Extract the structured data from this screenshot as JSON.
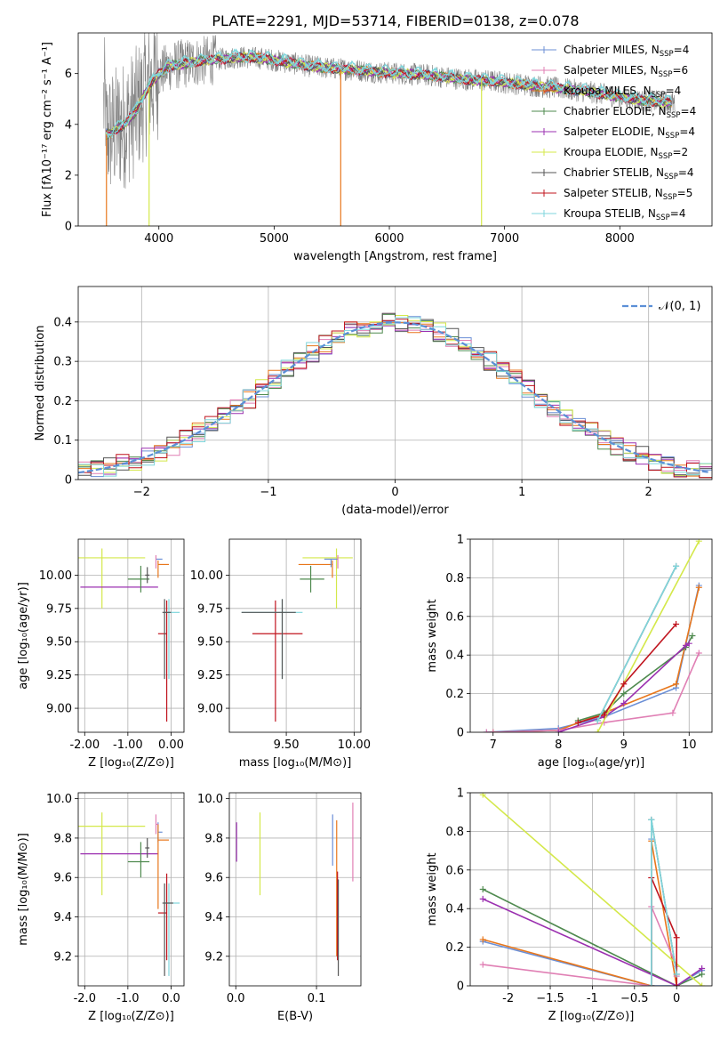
{
  "title": "PLATE=2291, MJD=53714, FIBERID=0138, z=0.078",
  "colors": {
    "chabrier_miles": "#6b8fd6",
    "salpeter_miles": "#e07fb4",
    "kroupa_miles": "#4a6fd0",
    "chabrier_elodie": "#4f8a4f",
    "salpeter_elodie": "#9b30b0",
    "kroupa_elodie": "#d4e84a",
    "chabrier_stelib": "#555555",
    "salpeter_stelib": "#c0141e",
    "kroupa_stelib": "#7fd6dc",
    "orange": "#e8771c",
    "data": "#808080",
    "normal": "#5b8fd6"
  },
  "legend": [
    {
      "text": "Chabrier MILES, N",
      "sub": "SSP",
      "suffix": "=4",
      "color": "#6b8fd6"
    },
    {
      "text": "Salpeter MILES, N",
      "sub": "SSP",
      "suffix": "=6",
      "color": "#e07fb4"
    },
    {
      "text": "Kroupa MILES, N",
      "sub": "SSP",
      "suffix": "=4",
      "color": "#e8771c"
    },
    {
      "text": "Chabrier ELODIE, N",
      "sub": "SSP",
      "suffix": "=4",
      "color": "#4f8a4f"
    },
    {
      "text": "Salpeter ELODIE, N",
      "sub": "SSP",
      "suffix": "=4",
      "color": "#9b30b0"
    },
    {
      "text": "Kroupa ELODIE, N",
      "sub": "SSP",
      "suffix": "=2",
      "color": "#d4e84a"
    },
    {
      "text": "Chabrier STELIB, N",
      "sub": "SSP",
      "suffix": "=4",
      "color": "#555555"
    },
    {
      "text": "Salpeter STELIB, N",
      "sub": "SSP",
      "suffix": "=5",
      "color": "#c0141e"
    },
    {
      "text": "Kroupa STELIB, N",
      "sub": "SSP",
      "suffix": "=4",
      "color": "#7fd6dc"
    }
  ],
  "chart_data": [
    {
      "type": "line",
      "id": "spectrum",
      "xlabel": "wavelength [Angstrom, rest frame]",
      "ylabel": "Flux [fλ10⁻¹⁷ erg cm⁻² s⁻¹ A⁻¹]",
      "xlim": [
        3300,
        8800
      ],
      "ylim": [
        0,
        7.6
      ],
      "xticks": [
        4000,
        5000,
        6000,
        7000,
        8000
      ],
      "yticks": [
        0,
        2,
        4,
        6
      ],
      "model_continuum": {
        "x": [
          3540,
          3600,
          3700,
          3800,
          3900,
          4000,
          4100,
          4300,
          4500,
          4700,
          4900,
          5100,
          5300,
          5500,
          5700,
          5900,
          6100,
          6300,
          6500,
          6700,
          6900,
          7100,
          7300,
          7500,
          7700,
          7900,
          8100,
          8300,
          8450
        ],
        "y": [
          3.6,
          3.7,
          4.0,
          4.5,
          5.4,
          6.0,
          6.3,
          6.45,
          6.55,
          6.65,
          6.6,
          6.45,
          6.3,
          6.2,
          6.15,
          6.05,
          6.0,
          5.95,
          5.85,
          5.75,
          5.7,
          5.6,
          5.5,
          5.4,
          5.3,
          5.15,
          5.0,
          4.9,
          4.85
        ]
      }
    },
    {
      "type": "line",
      "id": "residual-histogram",
      "xlabel": "(data-model)/error",
      "ylabel": "Normed distribution",
      "xlim": [
        -2.5,
        2.5
      ],
      "ylim": [
        0,
        0.49
      ],
      "xticks": [
        -2,
        -1,
        0,
        1,
        2
      ],
      "yticks": [
        0.0,
        0.1,
        0.2,
        0.3,
        0.4
      ],
      "series": [
        {
          "name": "𝒩(0, 1)",
          "type": "normal",
          "mean": 0,
          "sigma": 1
        }
      ]
    },
    {
      "type": "scatter",
      "id": "age-vs-z",
      "xlabel": "Z [log₁₀(Z/Z⊙)]",
      "ylabel": "age  [log₁₀(age/yr)]",
      "xlim": [
        -2.15,
        0.3
      ],
      "ylim": [
        8.82,
        10.27
      ],
      "xticks": [
        -2,
        -1,
        0
      ],
      "yticks": [
        9.0,
        9.25,
        9.5,
        9.75,
        10.0
      ],
      "points": [
        {
          "x": -1.6,
          "y": 10.13,
          "xerr": [
            0.55,
            1.0
          ],
          "yerr": [
            0.38,
            0.07
          ],
          "color": "#d4e84a"
        },
        {
          "x": -0.55,
          "y": 9.91,
          "xerr": [
            1.55,
            0.25
          ],
          "yerr": [
            0.0,
            0.0
          ],
          "color": "#9b30b0"
        },
        {
          "x": -0.7,
          "y": 9.97,
          "xerr": [
            0.3,
            0.2
          ],
          "yerr": [
            0.1,
            0.1
          ],
          "color": "#4f8a4f"
        },
        {
          "x": -0.55,
          "y": 10.0,
          "xerr": [
            0.05,
            0.05
          ],
          "yerr": [
            0.06,
            0.06
          ],
          "color": "#555555"
        },
        {
          "x": -0.3,
          "y": 10.12,
          "xerr": [
            0.05,
            0.1
          ],
          "yerr": [
            0.0,
            0.0
          ],
          "color": "#6b8fd6"
        },
        {
          "x": -0.3,
          "y": 10.08,
          "xerr": [
            0.0,
            0.25
          ],
          "yerr": [
            0.1,
            0.03
          ],
          "color": "#e8771c"
        },
        {
          "x": -0.35,
          "y": 10.1,
          "xerr": [
            0.0,
            0.0
          ],
          "yerr": [
            0.05,
            0.05
          ],
          "color": "#e07fb4"
        },
        {
          "x": -0.1,
          "y": 9.56,
          "xerr": [
            0.2,
            0.0
          ],
          "yerr": [
            0.66,
            0.25
          ],
          "color": "#c0141e"
        },
        {
          "x": -0.05,
          "y": 9.72,
          "xerr": [
            0.05,
            0.25
          ],
          "yerr": [
            0.5,
            0.1
          ],
          "color": "#7fd6dc"
        },
        {
          "x": -0.15,
          "y": 9.72,
          "xerr": [
            0.05,
            0.15
          ],
          "yerr": [
            0.5,
            0.1
          ],
          "color": "#555555"
        }
      ]
    },
    {
      "type": "scatter",
      "id": "age-vs-mass",
      "xlabel": "mass [log₁₀(M/M⊙)]",
      "ylabel": "",
      "xlim": [
        9.08,
        10.05
      ],
      "ylim": [
        8.82,
        10.27
      ],
      "xticks": [
        9.5,
        10.0
      ],
      "yticks": [
        9.0,
        9.25,
        9.5,
        9.75,
        10.0
      ],
      "points": [
        {
          "x": 9.87,
          "y": 10.13,
          "xerr": [
            0.25,
            0.12
          ],
          "yerr": [
            0.38,
            0.07
          ],
          "color": "#d4e84a"
        },
        {
          "x": 9.72,
          "y": 9.91,
          "xerr": [
            0.0,
            0.0
          ],
          "yerr": [
            0.0,
            0.0
          ],
          "color": "#9b30b0"
        },
        {
          "x": 9.68,
          "y": 9.97,
          "xerr": [
            0.08,
            0.1
          ],
          "yerr": [
            0.1,
            0.1
          ],
          "color": "#4f8a4f"
        },
        {
          "x": 9.84,
          "y": 10.08,
          "xerr": [
            0.25,
            0.0
          ],
          "yerr": [
            0.1,
            0.03
          ],
          "color": "#e8771c"
        },
        {
          "x": 9.83,
          "y": 10.12,
          "xerr": [
            0.05,
            0.05
          ],
          "yerr": [
            0.06,
            0.0
          ],
          "color": "#6b8fd6"
        },
        {
          "x": 9.88,
          "y": 10.1,
          "xerr": [
            0.0,
            0.0
          ],
          "yerr": [
            0.05,
            0.05
          ],
          "color": "#e07fb4"
        },
        {
          "x": 9.42,
          "y": 9.56,
          "xerr": [
            0.17,
            0.2
          ],
          "yerr": [
            0.66,
            0.25
          ],
          "color": "#c0141e"
        },
        {
          "x": 9.47,
          "y": 9.72,
          "xerr": [
            0.3,
            0.15
          ],
          "yerr": [
            0.5,
            0.1
          ],
          "color": "#7fd6dc"
        },
        {
          "x": 9.47,
          "y": 9.72,
          "xerr": [
            0.3,
            0.1
          ],
          "yerr": [
            0.5,
            0.1
          ],
          "color": "#555555"
        }
      ]
    },
    {
      "type": "line",
      "id": "mass-weight-vs-age",
      "xlabel": "age  [log₁₀(age/yr)]",
      "ylabel": "mass weight",
      "xlim": [
        6.65,
        10.35
      ],
      "ylim": [
        0,
        1.0
      ],
      "xticks": [
        7,
        8,
        9,
        10
      ],
      "yticks": [
        0.0,
        0.2,
        0.4,
        0.6,
        0.8,
        1.0
      ],
      "series": [
        {
          "color": "#6b8fd6",
          "x": [
            6.9,
            8.0,
            8.7,
            9.8,
            10.15
          ],
          "y": [
            0.0,
            0.02,
            0.08,
            0.23,
            0.76
          ]
        },
        {
          "color": "#e8771c",
          "x": [
            7.0,
            8.0,
            8.7,
            9.8,
            10.15
          ],
          "y": [
            0.0,
            0.01,
            0.1,
            0.25,
            0.75
          ]
        },
        {
          "color": "#e07fb4",
          "x": [
            6.9,
            7.0,
            8.0,
            8.7,
            9.75,
            10.15
          ],
          "y": [
            0.0,
            0.0,
            0.01,
            0.05,
            0.1,
            0.41
          ]
        },
        {
          "color": "#4f8a4f",
          "x": [
            8.3,
            8.7,
            9.0,
            9.95,
            10.05
          ],
          "y": [
            0.06,
            0.1,
            0.2,
            0.44,
            0.5
          ]
        },
        {
          "color": "#9b30b0",
          "x": [
            8.0,
            8.7,
            9.0,
            9.95,
            10.0
          ],
          "y": [
            0.0,
            0.08,
            0.15,
            0.45,
            0.46
          ]
        },
        {
          "color": "#d4e84a",
          "x": [
            8.6,
            10.15
          ],
          "y": [
            0.0,
            0.99
          ]
        },
        {
          "color": "#555555",
          "x": [
            8.6,
            9.8
          ],
          "y": [
            0.06,
            0.86
          ]
        },
        {
          "color": "#c0141e",
          "x": [
            8.3,
            8.7,
            9.0,
            9.8
          ],
          "y": [
            0.05,
            0.09,
            0.25,
            0.56
          ]
        },
        {
          "color": "#7fd6dc",
          "x": [
            8.6,
            9.8
          ],
          "y": [
            0.06,
            0.86
          ]
        }
      ]
    },
    {
      "type": "scatter",
      "id": "mass-vs-z",
      "xlabel": "Z [log₁₀(Z/Z⊙)]",
      "ylabel": "mass [log₁₀(M/M⊙)]",
      "xlim": [
        -2.15,
        0.3
      ],
      "ylim": [
        9.05,
        10.03
      ],
      "xticks": [
        -2,
        -1,
        0
      ],
      "yticks": [
        9.2,
        9.4,
        9.6,
        9.8,
        10.0
      ],
      "points": [
        {
          "x": -1.6,
          "y": 9.86,
          "xerr": [
            0.55,
            1.0
          ],
          "yerr": [
            0.35,
            0.07
          ],
          "color": "#d4e84a"
        },
        {
          "x": -0.55,
          "y": 9.72,
          "xerr": [
            1.55,
            0.25
          ],
          "yerr": [
            0.0,
            0.0
          ],
          "color": "#9b30b0"
        },
        {
          "x": -0.7,
          "y": 9.68,
          "xerr": [
            0.3,
            0.2
          ],
          "yerr": [
            0.08,
            0.1
          ],
          "color": "#4f8a4f"
        },
        {
          "x": -0.55,
          "y": 9.75,
          "xerr": [
            0.05,
            0.05
          ],
          "yerr": [
            0.05,
            0.05
          ],
          "color": "#555555"
        },
        {
          "x": -0.3,
          "y": 9.83,
          "xerr": [
            0.0,
            0.1
          ],
          "yerr": [
            0.05,
            0.05
          ],
          "color": "#6b8fd6"
        },
        {
          "x": -0.3,
          "y": 9.79,
          "xerr": [
            0.0,
            0.25
          ],
          "yerr": [
            0.35,
            0.08
          ],
          "color": "#e8771c"
        },
        {
          "x": -0.35,
          "y": 9.87,
          "xerr": [
            0.0,
            0.05
          ],
          "yerr": [
            0.05,
            0.05
          ],
          "color": "#e07fb4"
        },
        {
          "x": -0.1,
          "y": 9.42,
          "xerr": [
            0.2,
            0.0
          ],
          "yerr": [
            0.24,
            0.2
          ],
          "color": "#c0141e"
        },
        {
          "x": -0.05,
          "y": 9.47,
          "xerr": [
            0.05,
            0.25
          ],
          "yerr": [
            0.37,
            0.1
          ],
          "color": "#7fd6dc"
        },
        {
          "x": -0.15,
          "y": 9.47,
          "xerr": [
            0.05,
            0.2
          ],
          "yerr": [
            0.37,
            0.1
          ],
          "color": "#555555"
        }
      ]
    },
    {
      "type": "scatter",
      "id": "mass-vs-ebv",
      "xlabel": "E(B-V)",
      "ylabel": "",
      "xlim": [
        -0.008,
        0.155
      ],
      "ylim": [
        9.05,
        10.03
      ],
      "xticks": [
        0.0,
        0.1
      ],
      "yticks": [
        9.2,
        9.4,
        9.6,
        9.8,
        10.0
      ],
      "points": [
        {
          "x": 0.001,
          "y": 9.78,
          "yerr": [
            0.1,
            0.1
          ],
          "color": "#9b30b0"
        },
        {
          "x": 0.03,
          "y": 9.73,
          "yerr": [
            0.22,
            0.2
          ],
          "color": "#d4e84a"
        },
        {
          "x": 0.12,
          "y": 9.79,
          "yerr": [
            0.13,
            0.13
          ],
          "color": "#6b8fd6"
        },
        {
          "x": 0.125,
          "y": 9.55,
          "yerr": [
            0.35,
            0.34
          ],
          "color": "#e8771c"
        },
        {
          "x": 0.126,
          "y": 9.43,
          "yerr": [
            0.25,
            0.2
          ],
          "color": "#c0141e"
        },
        {
          "x": 0.127,
          "y": 9.37,
          "yerr": [
            0.27,
            0.22
          ],
          "color": "#555555"
        },
        {
          "x": 0.145,
          "y": 9.78,
          "yerr": [
            0.2,
            0.2
          ],
          "color": "#e07fb4"
        }
      ]
    },
    {
      "type": "line",
      "id": "mass-weight-vs-z",
      "xlabel": "Z [log₁₀(Z/Z⊙)]",
      "ylabel": "mass weight",
      "xlim": [
        -2.45,
        0.42
      ],
      "ylim": [
        0,
        1.0
      ],
      "xticks": [
        -2.0,
        -1.5,
        -1.0,
        -0.5,
        0.0
      ],
      "yticks": [
        0.0,
        0.2,
        0.4,
        0.6,
        0.8,
        1.0
      ],
      "series": [
        {
          "color": "#6b8fd6",
          "x": [
            -2.3,
            -0.3,
            -0.3,
            -0.3,
            0.0,
            0.3
          ],
          "y": [
            0.23,
            0.0,
            0.76,
            0.0,
            0.0,
            0.08
          ]
        },
        {
          "color": "#e8771c",
          "x": [
            -2.3,
            -0.3,
            -0.3,
            0.0
          ],
          "y": [
            0.24,
            0.0,
            0.75,
            0.0
          ]
        },
        {
          "color": "#e07fb4",
          "x": [
            -2.3,
            -0.3,
            -0.3,
            0.0,
            0.0
          ],
          "y": [
            0.11,
            0.0,
            0.41,
            0.1,
            0.05
          ]
        },
        {
          "color": "#4f8a4f",
          "x": [
            -2.3,
            0.0,
            0.3
          ],
          "y": [
            0.5,
            0.0,
            0.06
          ]
        },
        {
          "color": "#9b30b0",
          "x": [
            -2.3,
            0.0,
            0.3
          ],
          "y": [
            0.45,
            0.0,
            0.09
          ]
        },
        {
          "color": "#d4e84a",
          "x": [
            -2.3,
            0.3
          ],
          "y": [
            0.99,
            0.0
          ]
        },
        {
          "color": "#555555",
          "x": [
            -0.3,
            -0.3,
            0.0
          ],
          "y": [
            0.0,
            0.86,
            0.06
          ]
        },
        {
          "color": "#c0141e",
          "x": [
            -0.3,
            -0.3,
            0.0,
            0.0
          ],
          "y": [
            0.0,
            0.56,
            0.25,
            0.0
          ]
        },
        {
          "color": "#7fd6dc",
          "x": [
            -0.3,
            -0.3,
            0.0
          ],
          "y": [
            0.0,
            0.86,
            0.06
          ]
        }
      ]
    }
  ]
}
